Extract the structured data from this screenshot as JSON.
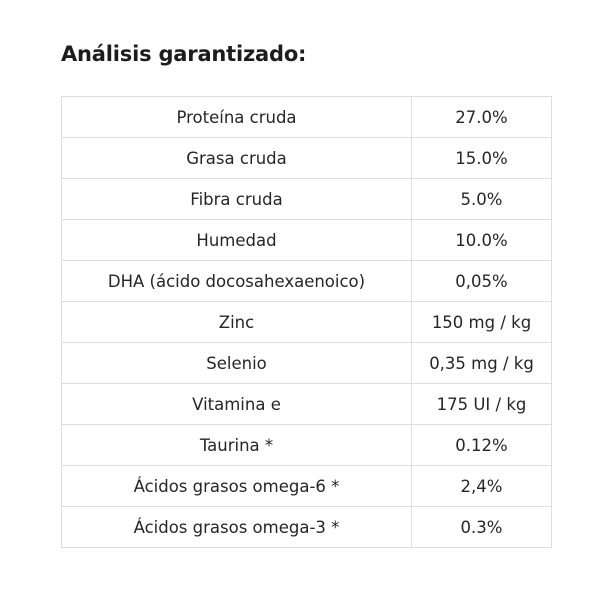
{
  "title": "Análisis garantizado:",
  "rows": [
    {
      "name": "Proteína cruda",
      "value": "27.0%"
    },
    {
      "name": "Grasa cruda",
      "value": "15.0%"
    },
    {
      "name": "Fibra cruda",
      "value": "5.0%"
    },
    {
      "name": "Humedad",
      "value": "10.0%"
    },
    {
      "name": "DHA (ácido docosahexaenoico)",
      "value": "0,05%"
    },
    {
      "name": "Zinc",
      "value": "150 mg / kg"
    },
    {
      "name": "Selenio",
      "value": "0,35 mg / kg"
    },
    {
      "name": "Vitamina e",
      "value": "175 UI / kg"
    },
    {
      "name": "Taurina *",
      "value": "0.12%"
    },
    {
      "name": "Ácidos grasos omega-6 *",
      "value": "2,4%"
    },
    {
      "name": "Ácidos grasos omega-3 *",
      "value": "0.3%"
    }
  ]
}
